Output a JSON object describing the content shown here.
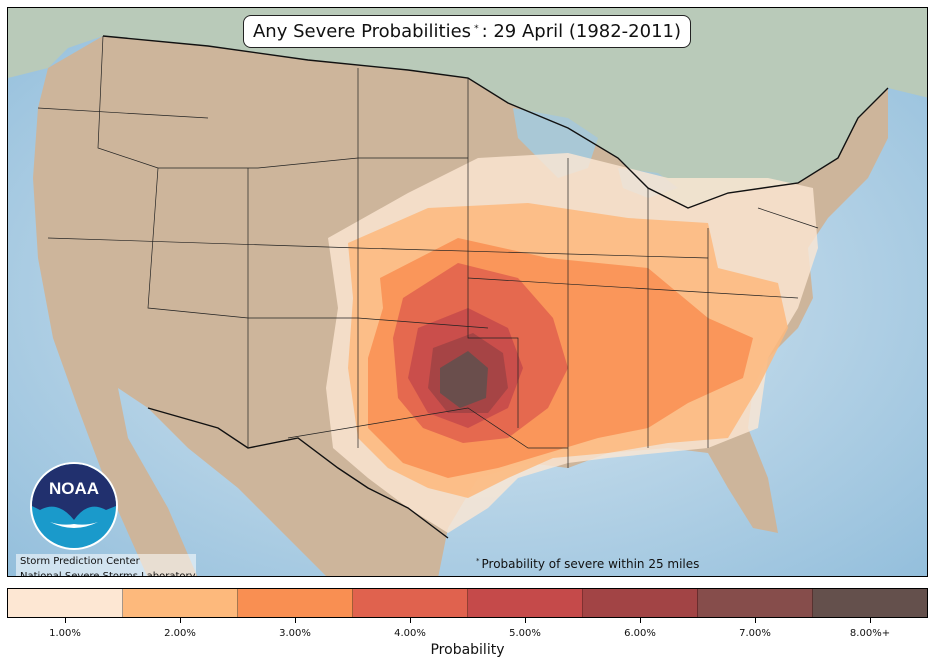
{
  "title": {
    "prefix": "Any Severe Probabilities",
    "marker": "*",
    "suffix": ": 29 April (1982-2011)"
  },
  "credits": {
    "line1": "Storm Prediction Center",
    "line2": "National Severe Storms Laboratory"
  },
  "footnote": {
    "marker": "*",
    "text": "Probability of severe within 25 miles"
  },
  "logo": {
    "text": "NOAA"
  },
  "colorbar": {
    "label": "Probability",
    "bins": [
      {
        "label": "1.00%",
        "color": "#fde7d3"
      },
      {
        "label": "2.00%",
        "color": "#fdb97c"
      },
      {
        "label": "3.00%",
        "color": "#f98f52"
      },
      {
        "label": "4.00%",
        "color": "#e0624e"
      },
      {
        "label": "5.00%",
        "color": "#c54a4a"
      },
      {
        "label": "6.00%",
        "color": "#a24445"
      },
      {
        "label": "7.00%",
        "color": "#864d4b"
      },
      {
        "label": "8.00%+",
        "color": "#64504c"
      }
    ]
  },
  "colors": {
    "ocean": "#c6dcea",
    "land": "#cdb59b",
    "canada": "#b8c9bf",
    "mexico": "#c9b59c"
  }
}
